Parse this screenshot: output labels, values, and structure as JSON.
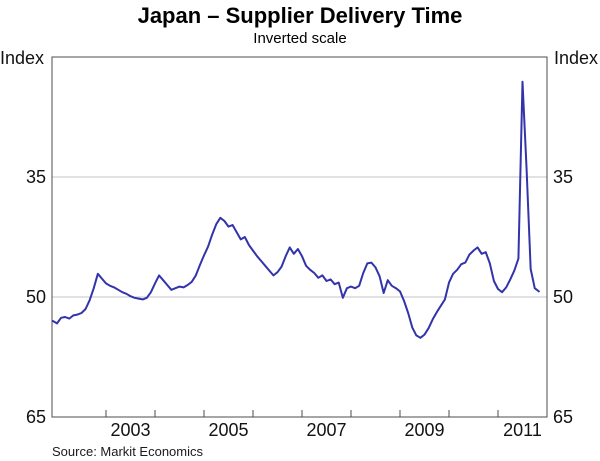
{
  "header": {
    "title": "Japan – Supplier Delivery Time",
    "subtitle": "Inverted scale"
  },
  "axes": {
    "unit_left": "Index",
    "unit_right": "Index"
  },
  "footer": {
    "source": "Source: Markit Economics"
  },
  "colors": {
    "line": "#3333ab",
    "grid": "#c4c6c8",
    "frame": "#4d4d4d"
  },
  "chart_data": {
    "type": "line",
    "title": "Japan – Supplier Delivery Time",
    "subtitle": "Inverted scale",
    "ylabel": "Index",
    "grid": true,
    "y_axis": {
      "ticks": [
        35,
        50,
        65
      ],
      "top_value": 20,
      "bottom_value": 65,
      "inverted_scale": true
    },
    "x_axis": {
      "domain_start": 2001.898,
      "domain_end": 2012.0,
      "tick_years": [
        2003,
        2004,
        2005,
        2006,
        2007,
        2008,
        2009,
        2010,
        2011
      ],
      "label_years": [
        "2003",
        "2005",
        "2007",
        "2009",
        "2011"
      ]
    },
    "series": [
      {
        "name": "Supplier delivery time index",
        "color": "#3333ab",
        "start_month": "2001-12",
        "frequency": "monthly",
        "values": [
          53.0,
          53.3,
          52.6,
          52.5,
          52.7,
          52.3,
          52.2,
          52.0,
          51.5,
          50.4,
          48.9,
          47.1,
          47.7,
          48.3,
          48.6,
          48.8,
          49.1,
          49.4,
          49.6,
          49.9,
          50.1,
          50.2,
          50.3,
          50.1,
          49.4,
          48.3,
          47.3,
          47.9,
          48.5,
          49.1,
          48.9,
          48.7,
          48.8,
          48.5,
          48.1,
          47.3,
          46.0,
          44.8,
          43.7,
          42.2,
          40.9,
          40.1,
          40.5,
          41.2,
          41.0,
          41.9,
          42.8,
          42.5,
          43.5,
          44.2,
          44.9,
          45.5,
          46.1,
          46.7,
          47.3,
          46.9,
          46.2,
          44.9,
          43.8,
          44.6,
          44.0,
          44.9,
          46.1,
          46.6,
          47.0,
          47.6,
          47.3,
          48.0,
          47.8,
          48.4,
          48.2,
          50.1,
          48.9,
          48.7,
          48.9,
          48.6,
          47.0,
          45.8,
          45.7,
          46.3,
          47.4,
          49.5,
          47.9,
          48.6,
          48.9,
          49.3,
          50.5,
          52.0,
          53.8,
          54.8,
          55.1,
          54.7,
          53.9,
          52.8,
          51.9,
          51.1,
          50.3,
          48.2,
          47.1,
          46.6,
          45.9,
          45.7,
          44.7,
          44.2,
          43.8,
          44.6,
          44.4,
          45.8,
          48.0,
          49.0,
          49.4,
          48.8,
          47.8,
          46.7,
          45.2,
          23.1,
          34.0,
          46.5,
          48.9,
          49.3
        ]
      }
    ]
  }
}
